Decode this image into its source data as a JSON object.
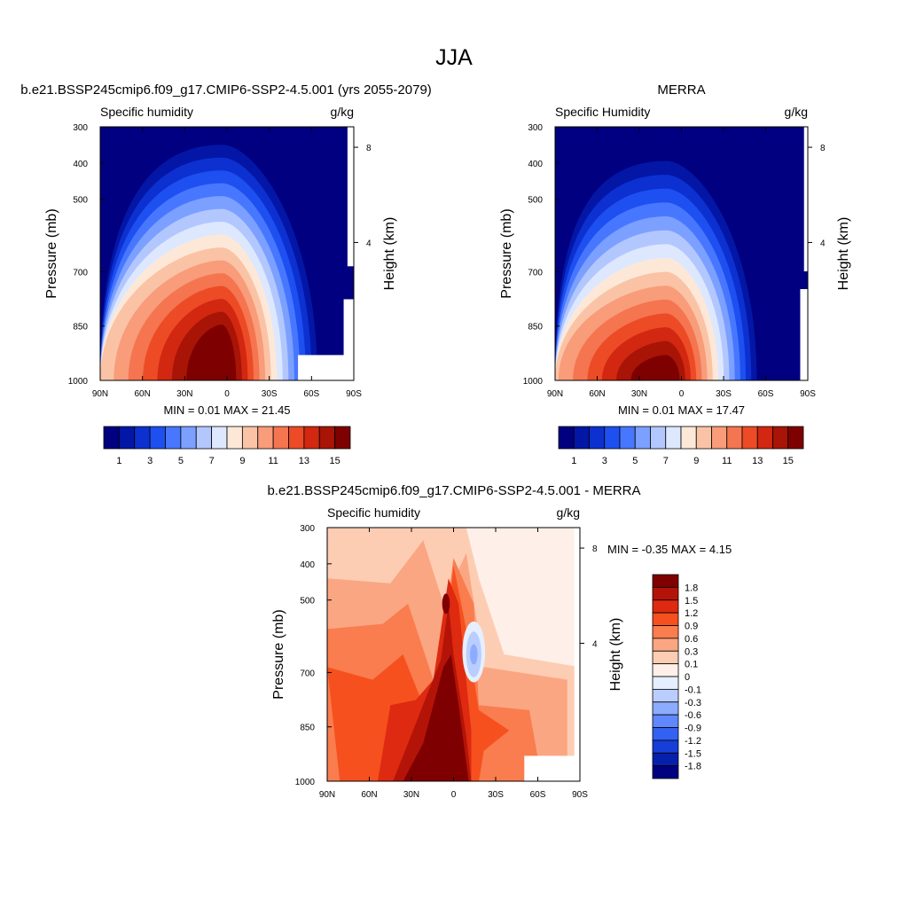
{
  "figure": {
    "title": "JJA"
  },
  "chart_data": [
    {
      "type": "contour",
      "title": "b.e21.BSSP245cmip6.f09_g17.CMIP6-SSP2-4.5.001 (yrs 2055-2079)",
      "subtitle_left": "Specific humidity",
      "subtitle_right": "g/kg",
      "ylabel": "Pressure (mb)",
      "ylabel_right": "Height (km)",
      "x_ticks": [
        "90N",
        "60N",
        "30N",
        "0",
        "30S",
        "60S",
        "90S"
      ],
      "y_ticks": [
        "300",
        "400",
        "500",
        "700",
        "850",
        "1000"
      ],
      "y_right_ticks": [
        "8",
        "4"
      ],
      "stats": "MIN =   0.01  MAX =  21.45",
      "colorbar": {
        "orientation": "horizontal",
        "labels": [
          "1",
          "3",
          "5",
          "7",
          "9",
          "11",
          "13",
          "15"
        ]
      }
    },
    {
      "type": "contour",
      "title": "MERRA",
      "subtitle_left": "Specific Humidity",
      "subtitle_right": "g/kg",
      "ylabel": "Pressure (mb)",
      "ylabel_right": "Height (km)",
      "x_ticks": [
        "90N",
        "60N",
        "30N",
        "0",
        "30S",
        "60S",
        "90S"
      ],
      "y_ticks": [
        "300",
        "400",
        "500",
        "700",
        "850",
        "1000"
      ],
      "y_right_ticks": [
        "8",
        "4"
      ],
      "stats": "MIN =   0.01  MAX =  17.47",
      "colorbar": {
        "orientation": "horizontal",
        "labels": [
          "1",
          "3",
          "5",
          "7",
          "9",
          "11",
          "13",
          "15"
        ]
      }
    },
    {
      "type": "contour",
      "title": "b.e21.BSSP245cmip6.f09_g17.CMIP6-SSP2-4.5.001 - MERRA",
      "subtitle_left": "Specific humidity",
      "subtitle_right": "g/kg",
      "ylabel": "Pressure (mb)",
      "ylabel_right": "Height (km)",
      "x_ticks": [
        "90N",
        "60N",
        "30N",
        "0",
        "30S",
        "60S",
        "90S"
      ],
      "y_ticks": [
        "300",
        "400",
        "500",
        "700",
        "850",
        "1000"
      ],
      "y_right_ticks": [
        "8",
        "4"
      ],
      "stats": "MIN =  -0.35  MAX =    4.15",
      "colorbar": {
        "orientation": "vertical",
        "labels": [
          "1.8",
          "1.5",
          "1.2",
          "0.9",
          "0.6",
          "0.3",
          "0.1",
          "0",
          "-0.1",
          "-0.3",
          "-0.6",
          "-0.9",
          "-1.2",
          "-1.5",
          "-1.8"
        ]
      }
    }
  ],
  "colors": {
    "scale16": [
      "#000080",
      "#0316a6",
      "#0c31d0",
      "#1e4ff0",
      "#4877ff",
      "#7ba0ff",
      "#b3c7ff",
      "#dde8ff",
      "#fde8d8",
      "#fbc3a6",
      "#f89c7a",
      "#f4754f",
      "#ec4b26",
      "#d22710",
      "#a81406",
      "#7f0000"
    ],
    "diff16": [
      "#7f0000",
      "#b41408",
      "#dd2a10",
      "#f6501f",
      "#f97d4f",
      "#fba682",
      "#fdcdb3",
      "#fef0e8",
      "#e6efff",
      "#b9ceff",
      "#8cacff",
      "#5f88ff",
      "#3361f2",
      "#173ed6",
      "#0520ab",
      "#000080"
    ]
  }
}
